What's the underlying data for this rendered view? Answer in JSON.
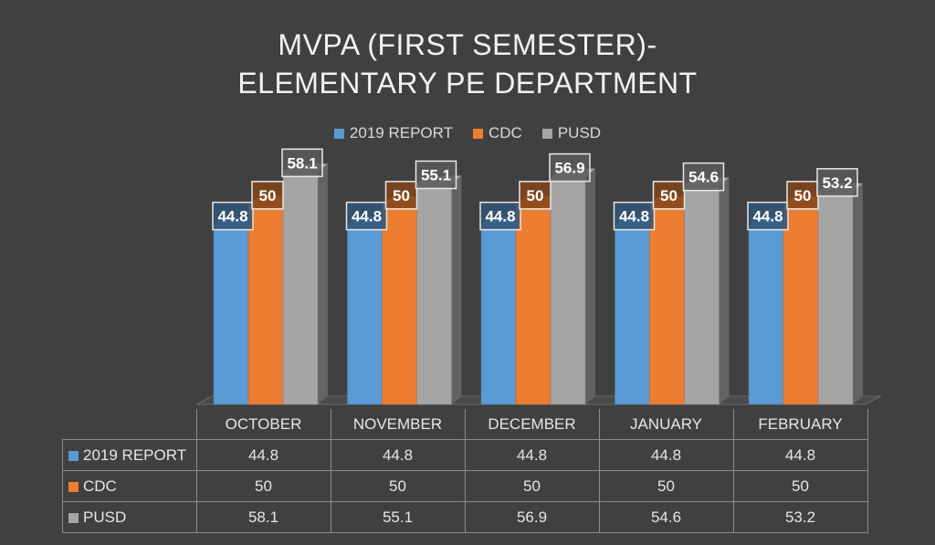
{
  "chart_data": {
    "type": "bar",
    "title_lines": [
      "MVPA (FIRST SEMESTER)-",
      "ELEMENTARY PE DEPARTMENT"
    ],
    "categories": [
      "OCTOBER",
      "NOVEMBER",
      "DECEMBER",
      "JANUARY",
      "FEBRUARY"
    ],
    "series": [
      {
        "name": "2019 REPORT",
        "values": [
          44.8,
          44.8,
          44.8,
          44.8,
          44.8
        ],
        "color": "#5b9bd5"
      },
      {
        "name": "CDC",
        "values": [
          50,
          50,
          50,
          50,
          50
        ],
        "color": "#ed7d31"
      },
      {
        "name": "PUSD",
        "values": [
          58.1,
          55.1,
          56.9,
          54.6,
          53.2
        ],
        "color": "#a5a5a5"
      }
    ],
    "ylim": [
      0,
      60
    ],
    "grid": false,
    "legend_placement": "top",
    "data_labels": true,
    "data_table": true
  }
}
